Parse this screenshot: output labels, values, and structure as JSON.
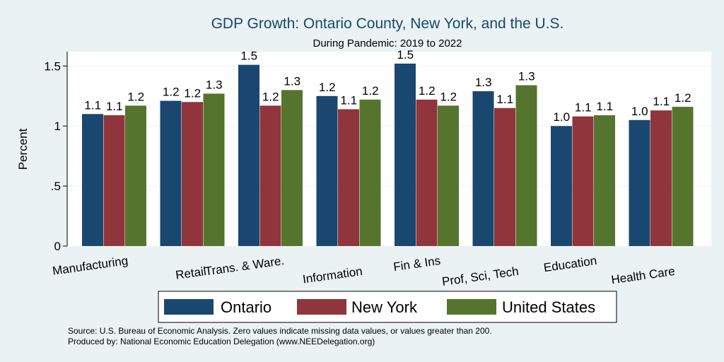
{
  "chart_data": {
    "type": "bar",
    "title": "GDP Growth: Ontario County, New York, and the U.S.",
    "subtitle": "During Pandemic: 2019 to 2022",
    "xlabel": "",
    "ylabel": "Percent",
    "ylim": [
      0,
      1.62
    ],
    "yticks": [
      0,
      0.5,
      1,
      1.5
    ],
    "ytick_labels": [
      "0",
      ".5",
      "1",
      "1.5"
    ],
    "categories": [
      "Manufacturing",
      "Retail",
      "Trans. & Ware.",
      "Information",
      "Fin & Ins",
      "Prof, Sci, Tech",
      "Education",
      "Health Care"
    ],
    "series": [
      {
        "name": "Ontario",
        "color": "#1a476f",
        "values": [
          1.1,
          1.21,
          1.51,
          1.25,
          1.52,
          1.29,
          1.0,
          1.05
        ],
        "labels": [
          "1.1",
          "1.2",
          "1.5",
          "1.2",
          "1.5",
          "1.3",
          "1.0",
          "1.0"
        ]
      },
      {
        "name": "New York",
        "color": "#90353b",
        "values": [
          1.09,
          1.2,
          1.17,
          1.14,
          1.22,
          1.15,
          1.08,
          1.13
        ],
        "labels": [
          "1.1",
          "1.2",
          "1.2",
          "1.1",
          "1.2",
          "1.1",
          "1.1",
          "1.1"
        ]
      },
      {
        "name": "United States",
        "color": "#55752f",
        "values": [
          1.17,
          1.27,
          1.3,
          1.22,
          1.17,
          1.34,
          1.09,
          1.16
        ],
        "labels": [
          "1.2",
          "1.3",
          "1.3",
          "1.2",
          "1.2",
          "1.3",
          "1.1",
          "1.2"
        ]
      }
    ],
    "grid": true,
    "legend_position": "bottom"
  },
  "notes": {
    "source": "Source: U.S. Bureau of Economic Analysis. Zero values indicate missing data values, or values greater than 200.",
    "produced": "Produced by: National Economic Education Delegation (www.NEEDelegation.org)"
  }
}
